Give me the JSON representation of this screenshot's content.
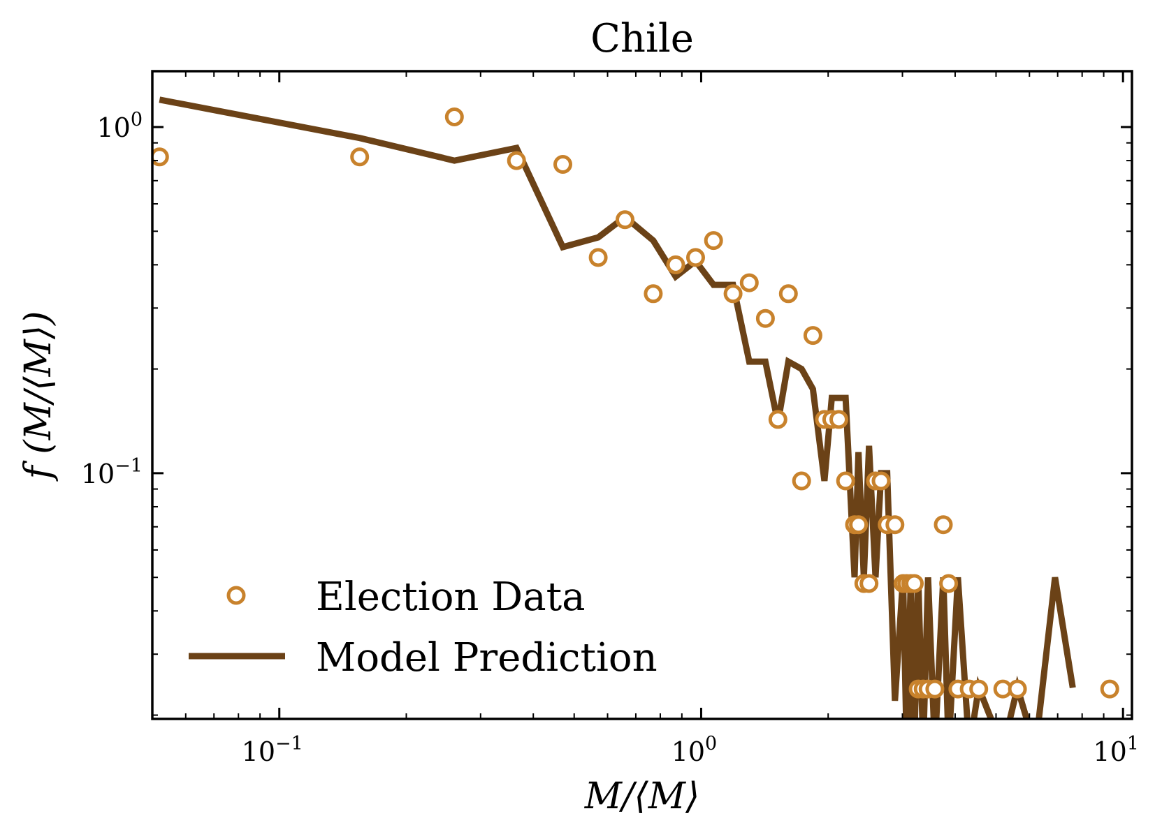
{
  "chart_data": {
    "type": "scatter",
    "title": "Chile",
    "xlabel": "M/⟨M⟩",
    "ylabel": "f (M/⟨M⟩)",
    "xscale": "log",
    "yscale": "log",
    "xlim": [
      0.05,
      10.5
    ],
    "ylim": [
      0.0195,
      1.45
    ],
    "grid": false,
    "legend_position": "bottom-left",
    "x_ticks": [
      {
        "value": 0.1,
        "base": "10",
        "exp": "−1"
      },
      {
        "value": 1,
        "base": "10",
        "exp": "0"
      },
      {
        "value": 10,
        "base": "10",
        "exp": "1"
      }
    ],
    "y_ticks": [
      {
        "value": 0.1,
        "base": "10",
        "exp": "−1"
      },
      {
        "value": 1,
        "base": "10",
        "exp": "0"
      }
    ],
    "colors": {
      "data": "#c8822c",
      "model": "#6b4217"
    },
    "series": [
      {
        "name": "Election Data",
        "kind": "scatter",
        "x": [
          0.052,
          0.155,
          0.26,
          0.365,
          0.47,
          0.57,
          0.66,
          0.77,
          0.87,
          0.97,
          1.07,
          1.19,
          1.3,
          1.42,
          1.52,
          1.61,
          1.73,
          1.84,
          1.96,
          2.04,
          2.12,
          2.2,
          2.31,
          2.36,
          2.43,
          2.5,
          2.59,
          2.67,
          2.76,
          2.88,
          3.01,
          3.07,
          3.14,
          3.2,
          3.27,
          3.36,
          3.45,
          3.58,
          3.75,
          3.86,
          4.06,
          4.32,
          4.55,
          5.19,
          5.62,
          9.3
        ],
        "y": [
          0.82,
          0.82,
          1.07,
          0.8,
          0.78,
          0.42,
          0.54,
          0.33,
          0.4,
          0.42,
          0.47,
          0.33,
          0.355,
          0.28,
          0.143,
          0.33,
          0.095,
          0.25,
          0.143,
          0.143,
          0.143,
          0.095,
          0.071,
          0.071,
          0.048,
          0.048,
          0.095,
          0.095,
          0.071,
          0.071,
          0.048,
          0.048,
          0.048,
          0.048,
          0.0238,
          0.0238,
          0.0238,
          0.0238,
          0.071,
          0.048,
          0.0238,
          0.0238,
          0.0238,
          0.0238,
          0.0238,
          0.0238
        ]
      },
      {
        "name": "Model Prediction",
        "kind": "line",
        "x": [
          0.052,
          0.155,
          0.26,
          0.365,
          0.47,
          0.57,
          0.66,
          0.77,
          0.87,
          0.97,
          1.07,
          1.19,
          1.3,
          1.42,
          1.52,
          1.61,
          1.73,
          1.84,
          1.96,
          2.04,
          2.12,
          2.2,
          2.31,
          2.36,
          2.43,
          2.5,
          2.59,
          2.67,
          2.76,
          2.88,
          3.01,
          3.07,
          3.14,
          3.2,
          3.27,
          3.36,
          3.45,
          3.58,
          3.75,
          3.86,
          4.06,
          4.32,
          4.55,
          5.19,
          5.62,
          6.2,
          6.9,
          7.6
        ],
        "y": [
          1.2,
          0.93,
          0.8,
          0.87,
          0.45,
          0.48,
          0.55,
          0.47,
          0.37,
          0.41,
          0.35,
          0.35,
          0.21,
          0.21,
          0.14,
          0.21,
          0.2,
          0.175,
          0.095,
          0.165,
          0.165,
          0.165,
          0.05,
          0.115,
          0.05,
          0.12,
          0.05,
          0.1,
          0.1,
          0.022,
          0.05,
          0.016,
          0.05,
          0.016,
          0.05,
          0.016,
          0.05,
          0.016,
          0.05,
          0.016,
          0.05,
          0.016,
          0.024,
          0.016,
          0.024,
          0.016,
          0.05,
          0.024
        ]
      }
    ]
  }
}
